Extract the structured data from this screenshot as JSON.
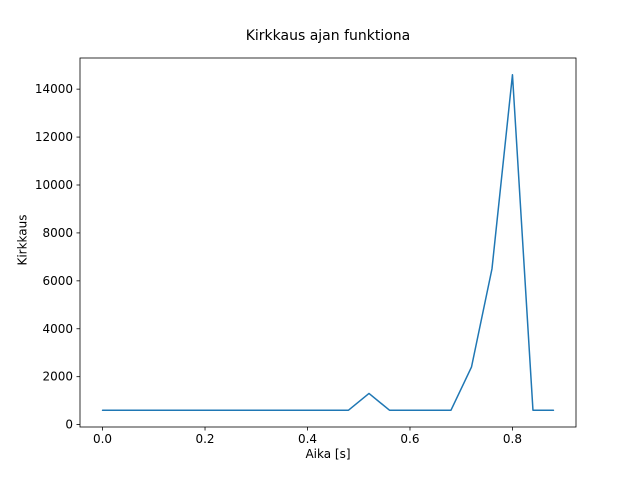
{
  "figure": {
    "background": "#ffffff",
    "line_color": "#1f77b4",
    "spine_color": "#000000"
  },
  "chart_data": {
    "type": "line",
    "title": "Kirkkaus ajan funktiona",
    "xlabel": "Aika [s]",
    "ylabel": "Kirkkaus",
    "x": [
      0.0,
      0.04,
      0.08,
      0.12,
      0.16,
      0.2,
      0.24,
      0.28,
      0.32,
      0.36,
      0.4,
      0.44,
      0.48,
      0.52,
      0.56,
      0.6,
      0.64,
      0.68,
      0.72,
      0.76,
      0.8,
      0.84,
      0.88
    ],
    "y": [
      600,
      600,
      600,
      600,
      600,
      600,
      600,
      600,
      600,
      600,
      600,
      600,
      600,
      1300,
      600,
      600,
      600,
      600,
      2400,
      6500,
      14600,
      600,
      600
    ],
    "xlim": [
      -0.044,
      0.924
    ],
    "ylim": [
      -100,
      15300
    ],
    "xticks": [
      0.0,
      0.2,
      0.4,
      0.6,
      0.8
    ],
    "xtick_labels": [
      "0.0",
      "0.2",
      "0.4",
      "0.6",
      "0.8"
    ],
    "yticks": [
      0,
      2000,
      4000,
      6000,
      8000,
      10000,
      12000,
      14000
    ],
    "ytick_labels": [
      "0",
      "2000",
      "4000",
      "6000",
      "8000",
      "10000",
      "12000",
      "14000"
    ],
    "grid": false,
    "legend": null
  }
}
